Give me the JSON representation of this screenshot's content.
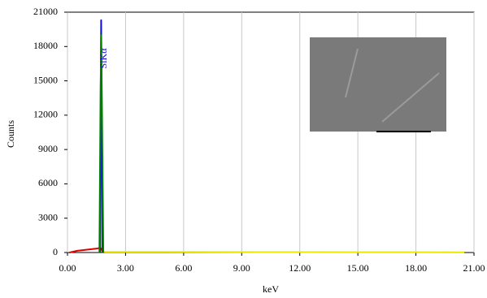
{
  "chart_data": {
    "type": "line",
    "annotation": "SiKα",
    "xlabel": "keV",
    "ylabel": "Counts",
    "xlim": [
      0,
      21
    ],
    "ylim": [
      0,
      21000
    ],
    "xticks": [
      {
        "value": 0,
        "label": "0.00"
      },
      {
        "value": 3,
        "label": "3.00"
      },
      {
        "value": 6,
        "label": "6.00"
      },
      {
        "value": 9,
        "label": "9.00"
      },
      {
        "value": 12,
        "label": "12.00"
      },
      {
        "value": 15,
        "label": "15.00"
      },
      {
        "value": 18,
        "label": "18.00"
      },
      {
        "value": 21,
        "label": "21.00"
      }
    ],
    "yticks": [
      0,
      3000,
      6000,
      9000,
      12000,
      15000,
      18000,
      21000
    ],
    "grid": "x",
    "series": [
      {
        "color": "#e00000",
        "x": [
          0.1,
          0.5,
          1.0,
          1.5,
          1.7,
          1.85
        ],
        "values": [
          0,
          150,
          250,
          350,
          400,
          0
        ]
      },
      {
        "color": "#e8e800",
        "x": [
          1.9,
          5,
          10,
          15,
          20.5
        ],
        "values": [
          50,
          50,
          40,
          30,
          20
        ]
      },
      {
        "color": "#1010d0",
        "x": [
          1.68,
          1.72,
          1.74,
          1.76,
          1.8
        ],
        "values": [
          0,
          15000,
          20300,
          14000,
          0
        ]
      },
      {
        "color": "#008000",
        "x": [
          1.65,
          1.7,
          1.74,
          1.78,
          1.85
        ],
        "values": [
          0,
          12000,
          19000,
          13000,
          0
        ]
      }
    ]
  }
}
